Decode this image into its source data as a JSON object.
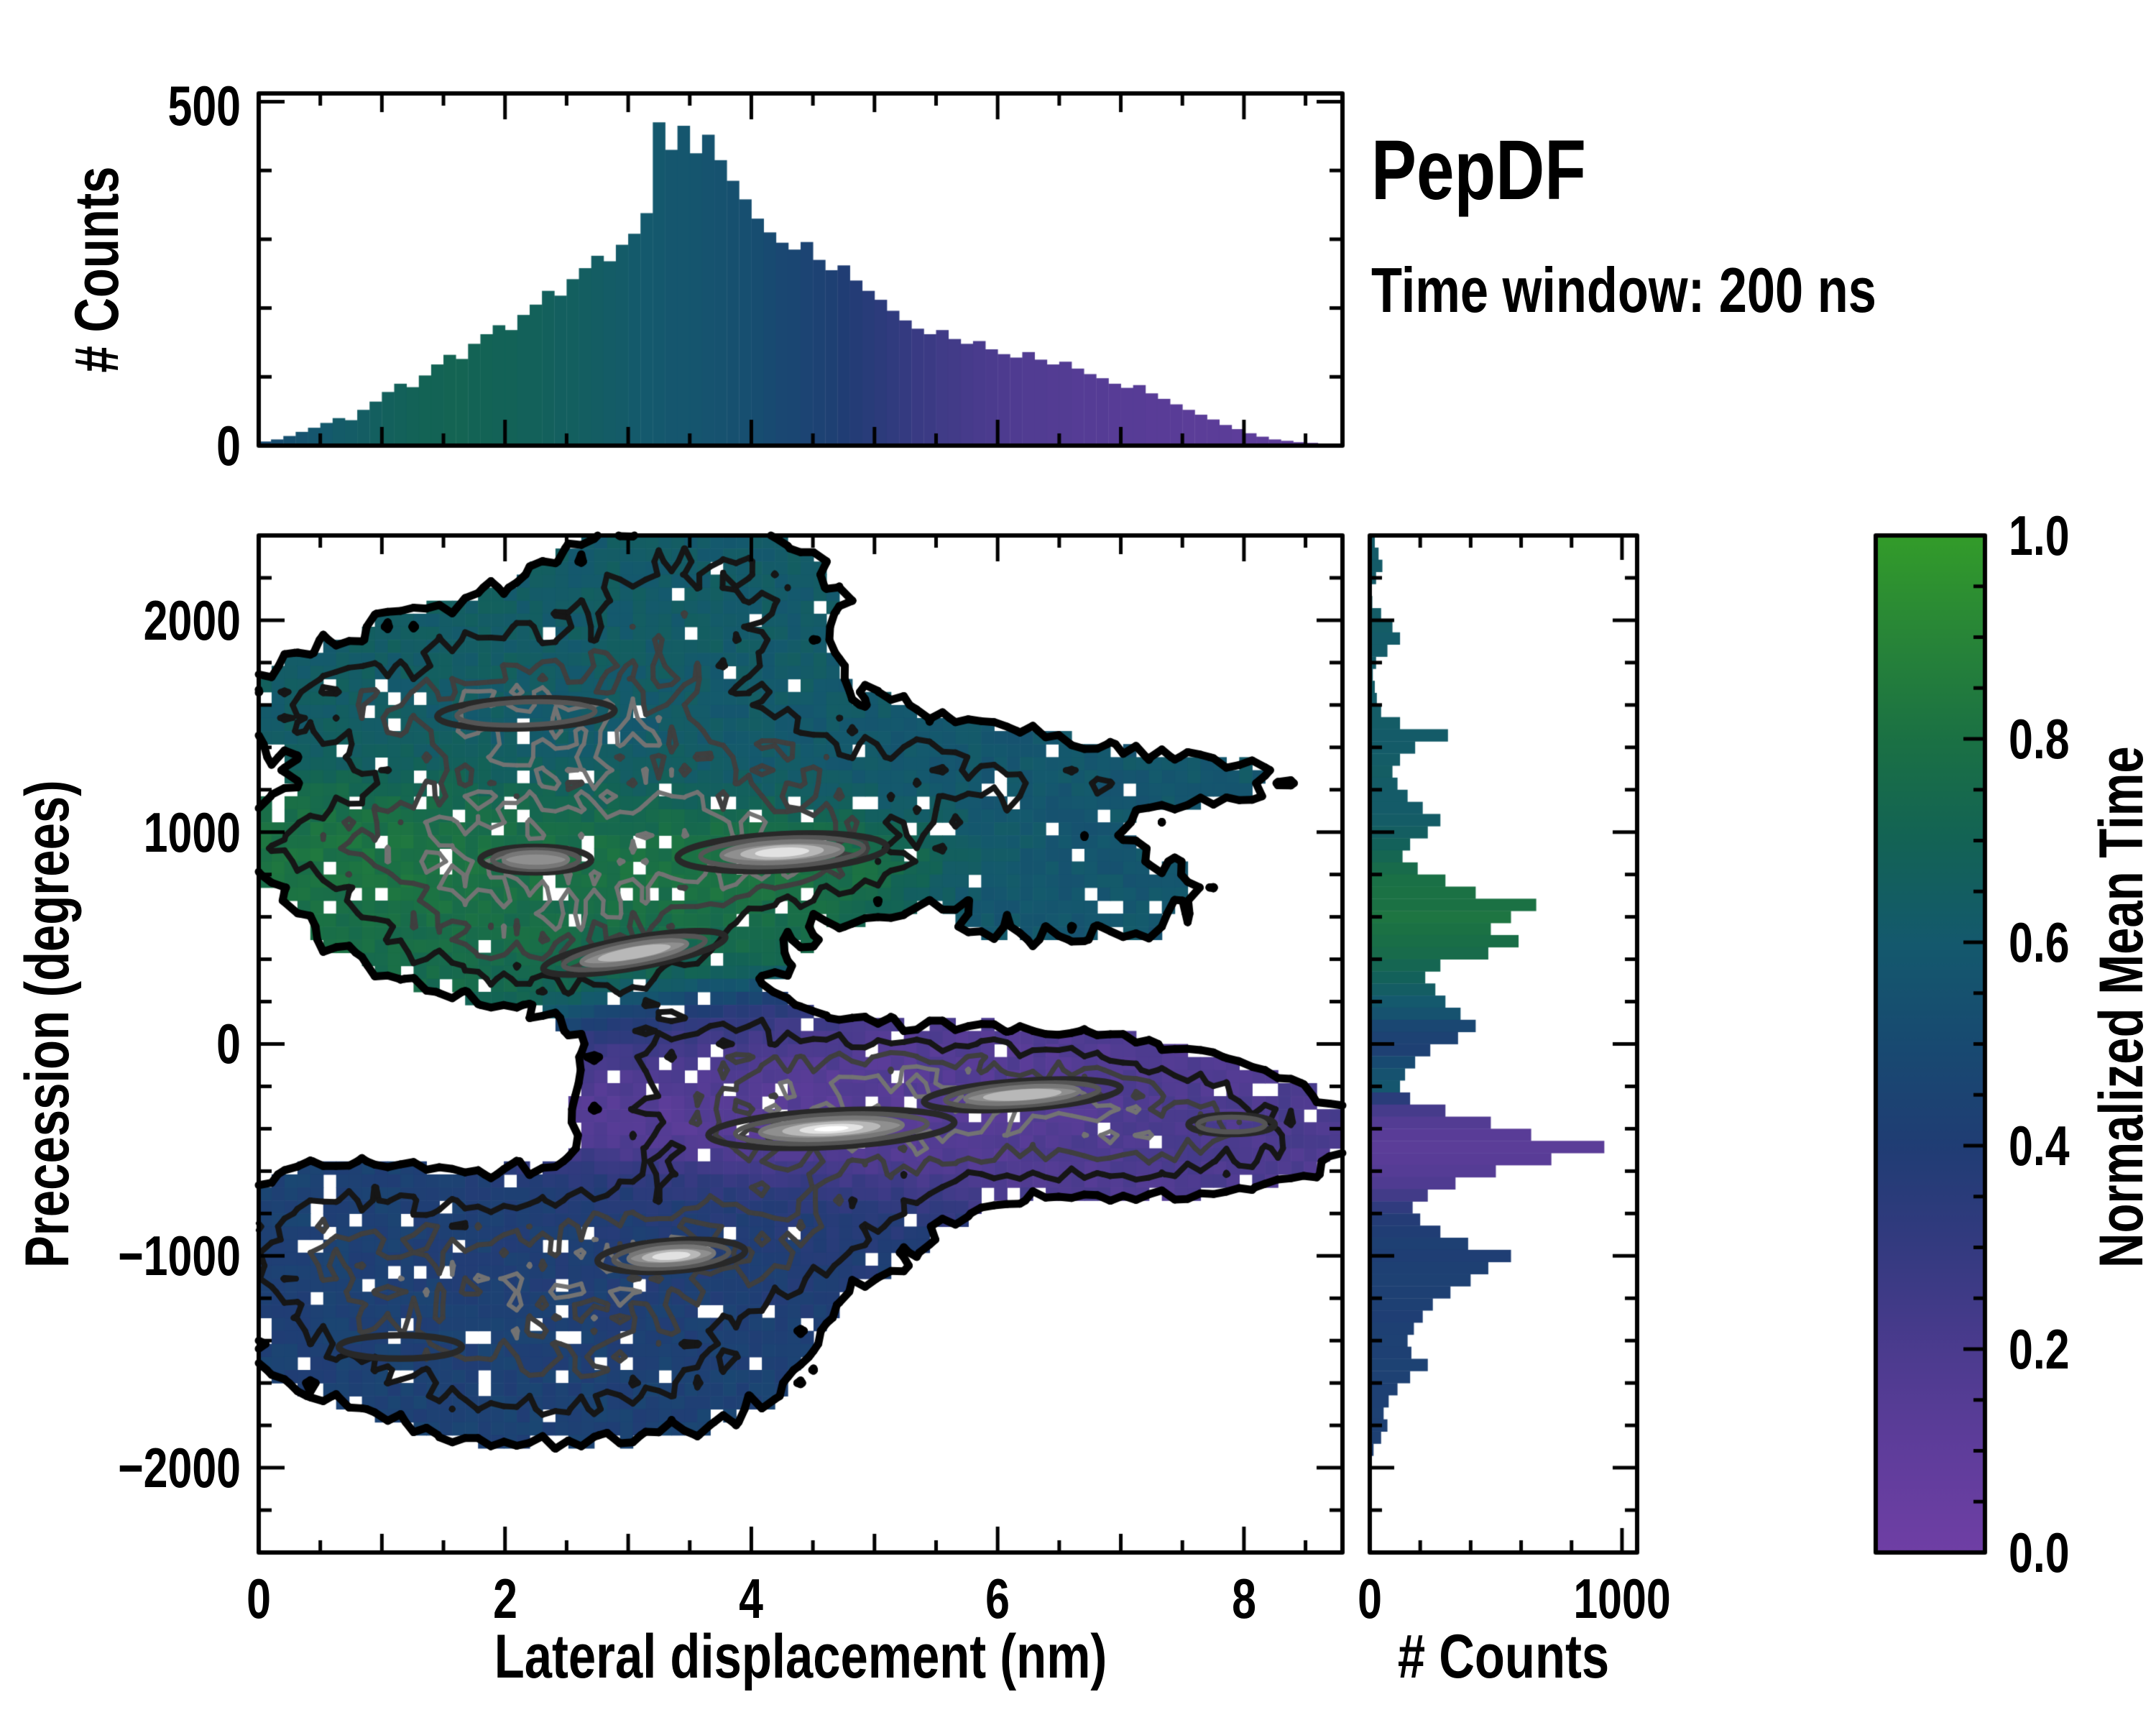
{
  "title": {
    "heading": "PepDF",
    "subtitle": "Time window: 200 ns"
  },
  "axes": {
    "top_hist": {
      "ylabel": "# Counts",
      "yticks": [
        "500",
        "0"
      ]
    },
    "main": {
      "xlabel": "Lateral displacement (nm)",
      "ylabel": "Precession (degrees)",
      "xticks": [
        "0",
        "2",
        "4",
        "6",
        "8"
      ],
      "yticks": [
        "2000",
        "1000",
        "0",
        "−1000",
        "−2000"
      ]
    },
    "right_hist": {
      "xlabel": "# Counts",
      "xticks": [
        "0",
        "1000"
      ]
    },
    "colorbar": {
      "label": "Normalized Mean Time",
      "ticks": [
        "1.0",
        "0.8",
        "0.6",
        "0.4",
        "0.2",
        "0.0"
      ]
    }
  },
  "colors": {
    "background": "#ffffff",
    "axis": "#000000"
  },
  "chart_data": [
    {
      "id": "top_histogram",
      "type": "bar",
      "ylabel": "# Counts",
      "x_range": [
        0,
        8.8
      ],
      "bin_width": 0.1,
      "ylim": [
        0,
        512
      ],
      "ytick_vals": [
        0,
        500
      ],
      "y_minor_step": 100,
      "counts": [
        6,
        9,
        14,
        20,
        26,
        33,
        40,
        37,
        52,
        64,
        78,
        90,
        85,
        102,
        118,
        132,
        126,
        148,
        162,
        175,
        168,
        190,
        205,
        225,
        218,
        242,
        258,
        276,
        268,
        292,
        308,
        338,
        470,
        430,
        465,
        425,
        452,
        415,
        385,
        358,
        330,
        310,
        295,
        285,
        296,
        270,
        255,
        262,
        240,
        225,
        212,
        196,
        182,
        170,
        162,
        168,
        155,
        148,
        152,
        140,
        133,
        128,
        136,
        125,
        118,
        122,
        112,
        104,
        98,
        90,
        84,
        88,
        76,
        68,
        60,
        52,
        45,
        38,
        30,
        24,
        18,
        13,
        9,
        7,
        5,
        4,
        3,
        2
      ],
      "color_values": [
        0.5,
        0.52,
        0.54,
        0.56,
        0.58,
        0.6,
        0.62,
        0.63,
        0.64,
        0.66,
        0.67,
        0.68,
        0.69,
        0.7,
        0.7,
        0.71,
        0.71,
        0.7,
        0.7,
        0.69,
        0.69,
        0.68,
        0.68,
        0.67,
        0.66,
        0.66,
        0.65,
        0.64,
        0.63,
        0.62,
        0.61,
        0.6,
        0.59,
        0.58,
        0.58,
        0.57,
        0.56,
        0.55,
        0.54,
        0.53,
        0.52,
        0.5,
        0.48,
        0.47,
        0.45,
        0.44,
        0.42,
        0.4,
        0.38,
        0.36,
        0.34,
        0.32,
        0.3,
        0.28,
        0.27,
        0.25,
        0.24,
        0.22,
        0.21,
        0.2,
        0.19,
        0.18,
        0.17,
        0.17,
        0.16,
        0.16,
        0.15,
        0.15,
        0.15,
        0.14,
        0.14,
        0.14,
        0.13,
        0.13,
        0.13,
        0.12,
        0.12,
        0.12,
        0.12,
        0.11,
        0.11,
        0.11,
        0.11,
        0.1,
        0.1,
        0.1,
        0.1,
        0.1
      ]
    },
    {
      "id": "main_heatmap",
      "type": "heatmap",
      "xlabel": "Lateral displacement (nm)",
      "ylabel": "Precession (degrees)",
      "xlim": [
        0,
        8.8
      ],
      "ylim": [
        -2400,
        2400
      ],
      "xtick_vals": [
        0,
        2,
        4,
        6,
        8
      ],
      "x_minor_step": 0.5,
      "ytick_vals": [
        -2000,
        -1000,
        0,
        1000,
        2000
      ],
      "y_minor_step": 200,
      "grid": {
        "nx": 84,
        "ny": 78
      },
      "fill_threshold": 0.95,
      "node_noise": [
        0.75,
        0.55
      ],
      "hole_fraction": 0.055,
      "value_jitter": 0.07,
      "components": [
        {
          "cx": 2.0,
          "cy": 1600,
          "sx": 1.1,
          "sy": 330,
          "amp": 2.6,
          "v": 0.64
        },
        {
          "cx": 3.6,
          "cy": 2100,
          "sx": 0.8,
          "sy": 300,
          "amp": 2.2,
          "v": 0.62
        },
        {
          "cx": 3.4,
          "cy": 1350,
          "sx": 1.3,
          "sy": 260,
          "amp": 2.0,
          "v": 0.6
        },
        {
          "cx": 5.6,
          "cy": 1250,
          "sx": 1.2,
          "sy": 200,
          "amp": 1.6,
          "v": 0.58
        },
        {
          "cx": 7.6,
          "cy": 1250,
          "sx": 0.8,
          "sy": 90,
          "amp": 1.1,
          "v": 0.6
        },
        {
          "cx": 6.6,
          "cy": 700,
          "sx": 1.0,
          "sy": 220,
          "amp": 1.5,
          "v": 0.58
        },
        {
          "cx": 0.5,
          "cy": 1600,
          "sx": 0.5,
          "sy": 150,
          "amp": 1.2,
          "v": 0.63
        },
        {
          "cx": 2.2,
          "cy": 1560,
          "sx": 0.6,
          "sy": 100,
          "amp": 1.5,
          "v": 0.62
        },
        {
          "cx": 2.0,
          "cy": 800,
          "sx": 1.0,
          "sy": 260,
          "amp": 2.8,
          "v": 0.78
        },
        {
          "cx": 3.3,
          "cy": 900,
          "sx": 1.0,
          "sy": 200,
          "amp": 2.6,
          "v": 0.82
        },
        {
          "cx": 2.6,
          "cy": 450,
          "sx": 1.1,
          "sy": 180,
          "amp": 2.2,
          "v": 0.74
        },
        {
          "cx": 4.2,
          "cy": 900,
          "sx": 0.7,
          "sy": 130,
          "amp": 2.4,
          "v": 0.85
        },
        {
          "cx": 1.4,
          "cy": 950,
          "sx": 0.7,
          "sy": 200,
          "amp": 1.6,
          "v": 0.88
        },
        {
          "cx": 0.3,
          "cy": 950,
          "sx": 0.45,
          "sy": 120,
          "amp": 1.0,
          "v": 0.8
        },
        {
          "cx": 4.6,
          "cy": -380,
          "sx": 1.2,
          "sy": 180,
          "amp": 3.0,
          "v": 0.12
        },
        {
          "cx": 6.3,
          "cy": -350,
          "sx": 1.2,
          "sy": 200,
          "amp": 2.4,
          "v": 0.18
        },
        {
          "cx": 5.4,
          "cy": -150,
          "sx": 1.3,
          "sy": 150,
          "amp": 2.0,
          "v": 0.15
        },
        {
          "cx": 7.6,
          "cy": -450,
          "sx": 0.9,
          "sy": 180,
          "amp": 1.8,
          "v": 0.2
        },
        {
          "cx": 3.6,
          "cy": 30,
          "sx": 0.8,
          "sy": 160,
          "amp": 1.5,
          "v": 0.28
        },
        {
          "cx": 1.6,
          "cy": -1150,
          "sx": 1.2,
          "sy": 300,
          "amp": 2.6,
          "v": 0.42
        },
        {
          "cx": 3.3,
          "cy": -1000,
          "sx": 1.0,
          "sy": 220,
          "amp": 2.6,
          "v": 0.4
        },
        {
          "cx": 2.6,
          "cy": -1550,
          "sx": 1.3,
          "sy": 250,
          "amp": 2.0,
          "v": 0.44
        },
        {
          "cx": 4.4,
          "cy": -800,
          "sx": 0.8,
          "sy": 180,
          "amp": 1.8,
          "v": 0.38
        },
        {
          "cx": 0.6,
          "cy": -900,
          "sx": 0.6,
          "sy": 250,
          "amp": 1.6,
          "v": 0.45
        }
      ],
      "contour_levels": [
        {
          "level": 0.95,
          "color": "#000000",
          "width": 11
        },
        {
          "level": 2.0,
          "color": "#161616",
          "width": 8
        },
        {
          "level": 3.2,
          "color": "#3f3f3f",
          "width": 7
        },
        {
          "level": 4.5,
          "color": "#737373",
          "width": 6
        }
      ],
      "hotspots": [
        {
          "cx": 2.17,
          "cy": 1560,
          "rx": 0.72,
          "ry": 70,
          "rot": -2,
          "depth": 2
        },
        {
          "cx": 4.25,
          "cy": 905,
          "rx": 0.85,
          "ry": 85,
          "rot": -3,
          "depth": 5
        },
        {
          "cx": 2.25,
          "cy": 870,
          "rx": 0.45,
          "ry": 60,
          "rot": 0,
          "depth": 3
        },
        {
          "cx": 3.05,
          "cy": 430,
          "rx": 0.75,
          "ry": 70,
          "rot": -10,
          "depth": 4
        },
        {
          "cx": 4.65,
          "cy": -400,
          "rx": 1.0,
          "ry": 85,
          "rot": -3,
          "depth": 6
        },
        {
          "cx": 6.2,
          "cy": -240,
          "rx": 0.8,
          "ry": 65,
          "rot": -4,
          "depth": 4
        },
        {
          "cx": 7.9,
          "cy": -380,
          "rx": 0.35,
          "ry": 45,
          "rot": 0,
          "depth": 2
        },
        {
          "cx": 3.35,
          "cy": -1000,
          "rx": 0.6,
          "ry": 72,
          "rot": -4,
          "depth": 5
        },
        {
          "cx": 1.15,
          "cy": -1430,
          "rx": 0.5,
          "ry": 55,
          "rot": 0,
          "depth": 1
        }
      ]
    },
    {
      "id": "right_histogram",
      "type": "bar",
      "orientation": "horizontal",
      "xlabel": "# Counts",
      "xlim": [
        0,
        1060
      ],
      "xtick_vals": [
        0,
        1000
      ],
      "x_minor_step": 200,
      "y_range": [
        2400,
        -2400
      ],
      "bin_height": 57.14,
      "counts": [
        20,
        35,
        50,
        25,
        8,
        10,
        45,
        90,
        120,
        70,
        25,
        12,
        20,
        28,
        45,
        120,
        310,
        180,
        120,
        90,
        110,
        150,
        210,
        280,
        230,
        160,
        130,
        190,
        300,
        420,
        660,
        560,
        480,
        590,
        470,
        280,
        220,
        260,
        300,
        360,
        420,
        350,
        240,
        180,
        140,
        120,
        160,
        300,
        480,
        640,
        930,
        720,
        500,
        340,
        230,
        170,
        200,
        280,
        390,
        560,
        470,
        400,
        320,
        250,
        210,
        175,
        150,
        165,
        230,
        160,
        110,
        75,
        55,
        70,
        45,
        15,
        0,
        0,
        0,
        0,
        0,
        0,
        0,
        0
      ],
      "color_values": [
        0.62,
        0.62,
        0.62,
        0.62,
        0.62,
        0.63,
        0.63,
        0.63,
        0.62,
        0.62,
        0.62,
        0.62,
        0.63,
        0.62,
        0.63,
        0.63,
        0.62,
        0.62,
        0.63,
        0.64,
        0.63,
        0.62,
        0.62,
        0.63,
        0.65,
        0.68,
        0.72,
        0.76,
        0.79,
        0.8,
        0.8,
        0.82,
        0.8,
        0.78,
        0.76,
        0.72,
        0.68,
        0.64,
        0.6,
        0.55,
        0.48,
        0.44,
        0.42,
        0.5,
        0.55,
        0.58,
        0.35,
        0.22,
        0.16,
        0.13,
        0.12,
        0.13,
        0.15,
        0.18,
        0.24,
        0.32,
        0.38,
        0.4,
        0.42,
        0.41,
        0.42,
        0.43,
        0.42,
        0.42,
        0.41,
        0.42,
        0.43,
        0.42,
        0.44,
        0.43,
        0.42,
        0.42,
        0.43,
        0.42,
        0.42,
        0.42,
        0.42,
        0.42,
        0.42,
        0.42,
        0.42,
        0.42,
        0.42,
        0.42
      ]
    },
    {
      "id": "colorbar",
      "type": "colorbar",
      "label": "Normalized Mean Time",
      "range": [
        0,
        1
      ],
      "tick_vals": [
        1.0,
        0.8,
        0.6,
        0.4,
        0.2,
        0.0
      ],
      "minor_step": 0.05,
      "stops": [
        [
          0.0,
          "#6f3fa5"
        ],
        [
          0.1,
          "#5f3d9b"
        ],
        [
          0.2,
          "#4b3b8e"
        ],
        [
          0.3,
          "#343a80"
        ],
        [
          0.4,
          "#203d74"
        ],
        [
          0.5,
          "#184a71"
        ],
        [
          0.6,
          "#14596d"
        ],
        [
          0.7,
          "#136355"
        ],
        [
          0.8,
          "#1b7144"
        ],
        [
          0.9,
          "#288538"
        ],
        [
          1.0,
          "#339c2a"
        ]
      ]
    }
  ]
}
